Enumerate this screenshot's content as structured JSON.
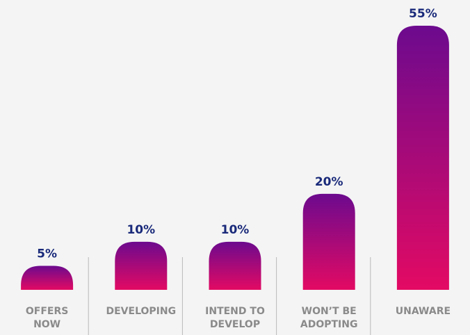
{
  "chart_data": {
    "type": "bar",
    "title": "",
    "xlabel": "",
    "ylabel": "",
    "categories": [
      [
        "OFFERS",
        "NOW"
      ],
      [
        "DEVELOPING"
      ],
      [
        "INTEND TO",
        "DEVELOP"
      ],
      [
        "WON’T BE",
        "ADOPTING"
      ],
      [
        "UNAWARE"
      ]
    ],
    "values": [
      5,
      10,
      10,
      20,
      55
    ],
    "value_labels": [
      "5%",
      "10%",
      "10%",
      "20%",
      "55%"
    ],
    "unit": "%",
    "ylim": [
      0,
      55
    ],
    "grid": false,
    "legend": "none",
    "colors": {
      "bar_top": "#6c0a8e",
      "bar_bottom": "#e30a63",
      "value_label": "#1a2a7a",
      "category_label": "#8a8a8a",
      "divider": "#b9b9b9",
      "background": "#f4f4f4"
    }
  }
}
